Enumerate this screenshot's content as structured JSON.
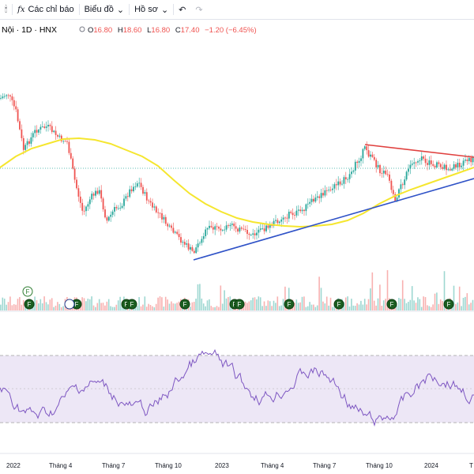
{
  "toolbar": {
    "layout_icon": "candles-icon",
    "indicators_label": "Các chỉ báo",
    "chart_type_label": "Biểu đồ",
    "profile_label": "Hồ sơ",
    "undo_icon": "undo-icon",
    "redo_icon": "redo-icon"
  },
  "legend": {
    "symbol_text": "Nội · 1D · HNX",
    "open_label": "O",
    "open": "16.80",
    "high_label": "H",
    "high": "18.60",
    "low_label": "L",
    "low": "16.80",
    "close_label": "C",
    "close": "17.40",
    "change": "−1.20 (−6.45%)"
  },
  "colors": {
    "up": "#26a69a",
    "down": "#ef5350",
    "ma": "#f5e62f",
    "trendline_support": "#2f52c7",
    "trendline_resistance": "#e0413f",
    "rsi": "#7e57c2",
    "rsi_band": "#ede7f6",
    "event_marker": "#1b5e20"
  },
  "event_markers": {
    "label": "F",
    "pending_label": "F"
  },
  "x_axis": {
    "labels": [
      "2022",
      "Tháng 4",
      "Tháng 7",
      "Tháng 10",
      "2023",
      "Tháng 4",
      "Tháng 7",
      "Tháng 10",
      "2024",
      "T"
    ]
  }
}
